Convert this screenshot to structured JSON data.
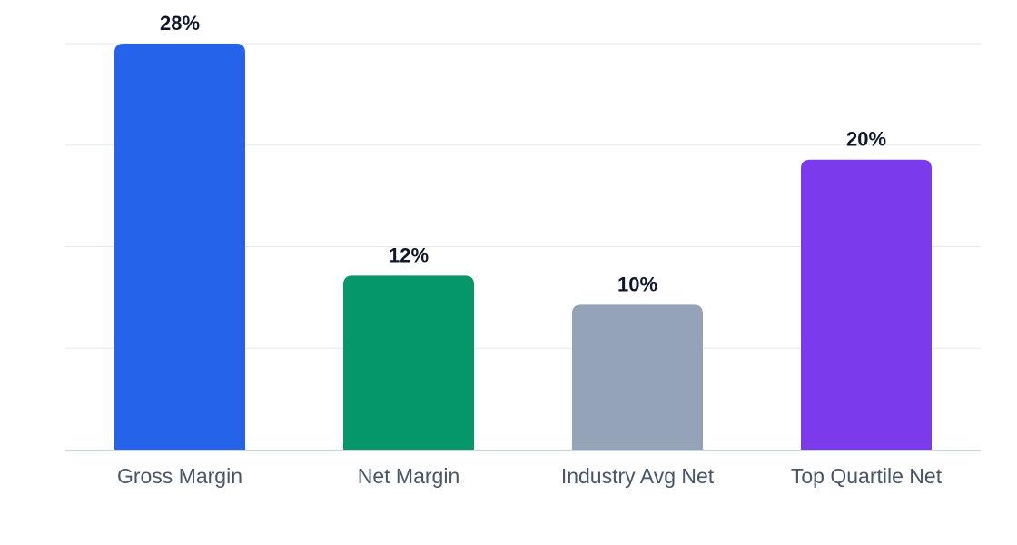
{
  "chart_data": {
    "type": "bar",
    "categories": [
      "Gross Margin",
      "Net Margin",
      "Industry Avg Net",
      "Top Quartile Net"
    ],
    "values": [
      28,
      12,
      10,
      20
    ],
    "value_labels": [
      "28%",
      "12%",
      "10%",
      "20%"
    ],
    "value_unit": "%",
    "ylim": [
      0,
      28
    ],
    "gridlines": [
      0,
      7,
      14,
      21,
      28
    ],
    "grid": true,
    "title": "",
    "xlabel": "",
    "ylabel": "",
    "colors": [
      "#2563eb",
      "#059669",
      "#94a3b8",
      "#7c3aed"
    ],
    "axis_color": "#cbd5e1",
    "grid_color": "#e5e7eb"
  }
}
